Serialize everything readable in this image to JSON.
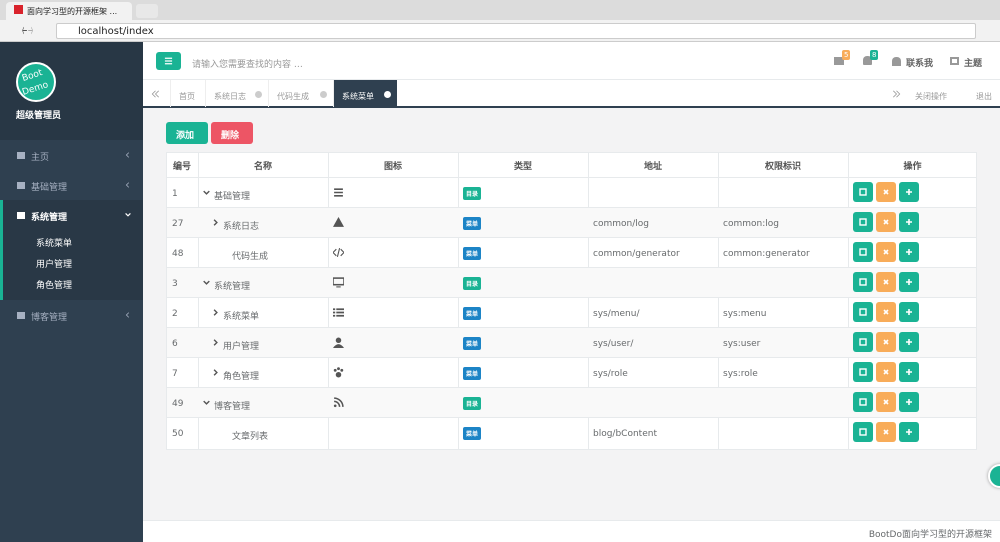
{
  "browser": {
    "tab_title": "面向学习型的开源框架 ...",
    "url": "localhost/index"
  },
  "sidebar": {
    "logo": [
      "Boot",
      "Demo"
    ],
    "user": "超级管理员",
    "menu": [
      {
        "label": "主页"
      },
      {
        "label": "基础管理"
      },
      {
        "label": "系统管理",
        "children": [
          "系统菜单",
          "用户管理",
          "角色管理"
        ]
      },
      {
        "label": "博客管理"
      }
    ]
  },
  "header": {
    "search_placeholder": "请输入您需要查找的内容 …",
    "mail_badge": 5,
    "bell_badge": 8,
    "contact": "联系我",
    "theme": "主题"
  },
  "tabs": {
    "items": [
      "首页",
      "系统日志",
      "代码生成",
      "系统菜单"
    ],
    "active": 3,
    "close_ops": "关闭操作",
    "logout": "退出"
  },
  "toolbar": {
    "add": "添加",
    "delete": "删除"
  },
  "table": {
    "columns": [
      "编号",
      "名称",
      "图标",
      "类型",
      "地址",
      "权限标识",
      "操作"
    ],
    "rows": [
      {
        "id": 1,
        "name": "基础管理",
        "type": "目录"
      },
      {
        "id": 27,
        "name": "系统日志",
        "type": "菜单",
        "url": "common/log",
        "perms": "common:log"
      },
      {
        "id": 48,
        "name": "代码生成",
        "type": "菜单",
        "url": "common/generator",
        "perms": "common:generator"
      },
      {
        "id": 3,
        "name": "系统管理",
        "type": "目录"
      },
      {
        "id": 2,
        "name": "系统菜单",
        "type": "菜单",
        "url": "sys/menu/",
        "perms": "sys:menu"
      },
      {
        "id": 6,
        "name": "用户管理",
        "type": "菜单",
        "url": "sys/user/",
        "perms": "sys:user"
      },
      {
        "id": 7,
        "name": "角色管理",
        "type": "菜单",
        "url": "sys/role",
        "perms": "sys:role"
      },
      {
        "id": 49,
        "name": "博客管理",
        "type": "目录"
      },
      {
        "id": 50,
        "name": "文章列表",
        "type": "菜单",
        "url": "blog/bContent"
      }
    ]
  },
  "footer": "BootDo面向学习型的开源框架"
}
